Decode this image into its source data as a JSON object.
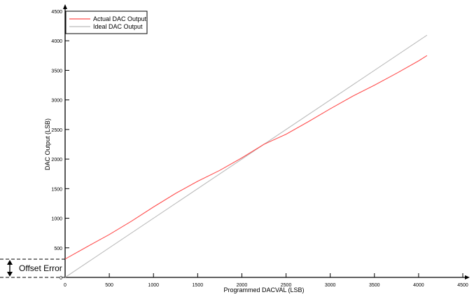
{
  "chart_data": {
    "type": "line",
    "title": "",
    "xlabel": "Programmed DACVAL (LSB)",
    "ylabel": "DAC Output (LSB)",
    "xlim": [
      0,
      4500
    ],
    "ylim": [
      0,
      4500
    ],
    "xticks": [
      0,
      500,
      1000,
      1500,
      2000,
      2500,
      3000,
      3500,
      4000,
      4500
    ],
    "yticks": [
      0,
      500,
      1000,
      1500,
      2000,
      2500,
      3000,
      3500,
      4000,
      4500
    ],
    "grid": false,
    "legend_position": "top-left",
    "series": [
      {
        "name": "Actual DAC Output",
        "color": "#ff4d4d",
        "x": [
          0,
          250,
          500,
          750,
          1000,
          1250,
          1500,
          1750,
          2000,
          2250,
          2500,
          2750,
          3000,
          3250,
          3500,
          3750,
          4000,
          4095
        ],
        "y": [
          310,
          520,
          725,
          950,
          1190,
          1420,
          1625,
          1810,
          2020,
          2250,
          2420,
          2630,
          2850,
          3060,
          3250,
          3450,
          3660,
          3750
        ]
      },
      {
        "name": "Ideal DAC Output",
        "color": "#bbbbbb",
        "x": [
          0,
          4095
        ],
        "y": [
          0,
          4095
        ]
      }
    ],
    "annotations": [
      {
        "text": "Offset Error"
      }
    ]
  }
}
